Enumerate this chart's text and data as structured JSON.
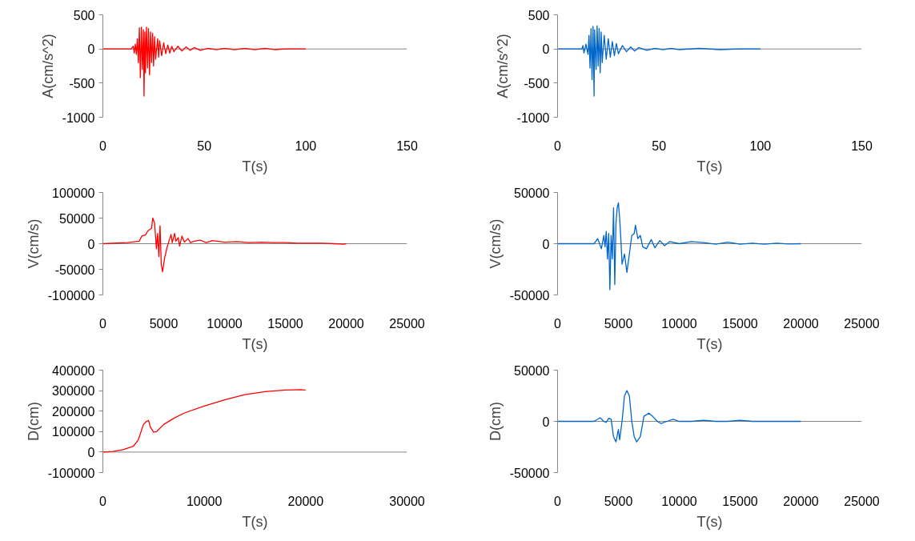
{
  "chart_data": [
    {
      "type": "line",
      "xlabel": "T(s)",
      "ylabel": "A(cm/s^2)",
      "color": "#ff0000",
      "grid": false,
      "ref_lines": [
        {
          "axis": "y",
          "value": 0,
          "color": "#888888"
        }
      ],
      "xlim": [
        0,
        150
      ],
      "ylim": [
        -1000,
        500
      ],
      "xticks": [
        0,
        50,
        100,
        150
      ],
      "yticks": [
        -1000,
        -500,
        0,
        500
      ],
      "x": [
        0,
        14,
        15,
        15.5,
        16,
        16.5,
        17,
        17.5,
        18,
        18.5,
        19,
        19.5,
        20,
        20.3,
        20.7,
        21,
        21.5,
        22,
        22.5,
        23,
        23.5,
        24,
        24.5,
        25,
        25.5,
        26,
        27,
        27.5,
        28,
        29,
        30,
        31,
        32,
        33,
        34,
        35,
        37,
        39,
        41,
        43,
        45,
        48,
        52,
        56,
        60,
        65,
        70,
        75,
        80,
        85,
        90,
        95,
        100
      ],
      "values": [
        0,
        0,
        40,
        -60,
        70,
        -80,
        150,
        -200,
        310,
        -420,
        320,
        -300,
        280,
        -690,
        250,
        -350,
        320,
        -280,
        300,
        -380,
        250,
        -200,
        230,
        -250,
        180,
        -150,
        150,
        -120,
        120,
        -100,
        90,
        -70,
        60,
        -60,
        40,
        -40,
        40,
        -30,
        30,
        -20,
        20,
        -20,
        10,
        -10,
        10,
        -10,
        10,
        -10,
        10,
        -10,
        0,
        0,
        0
      ]
    },
    {
      "type": "line",
      "xlabel": "T(s)",
      "ylabel": "A(cm/s^2)",
      "color": "#0066cc",
      "grid": false,
      "ref_lines": [
        {
          "axis": "y",
          "value": 0,
          "color": "#888888"
        }
      ],
      "xlim": [
        0,
        150
      ],
      "ylim": [
        -1000,
        500
      ],
      "xticks": [
        0,
        50,
        100,
        150
      ],
      "yticks": [
        -1000,
        -500,
        0,
        500
      ],
      "x": [
        0,
        12,
        12.5,
        13,
        14,
        15,
        15.5,
        16,
        16.5,
        17,
        17.5,
        18,
        18.3,
        19,
        19.5,
        20,
        20.5,
        21,
        21.5,
        22,
        23,
        24,
        25,
        26,
        27,
        28,
        29,
        30,
        32,
        34,
        36,
        38,
        40,
        44,
        48,
        52,
        56,
        60,
        70,
        80,
        90,
        100
      ],
      "values": [
        0,
        0,
        50,
        -60,
        70,
        -80,
        200,
        -280,
        300,
        -450,
        330,
        -690,
        280,
        -300,
        340,
        -250,
        300,
        -350,
        250,
        -200,
        200,
        -150,
        150,
        -120,
        110,
        -100,
        80,
        -70,
        50,
        -40,
        30,
        -30,
        20,
        -20,
        10,
        -10,
        10,
        -10,
        10,
        -10,
        0,
        0
      ]
    },
    {
      "type": "line",
      "xlabel": "T(s)",
      "ylabel": "V(cm/s)",
      "color": "#ff0000",
      "grid": false,
      "ref_lines": [
        {
          "axis": "y",
          "value": 0,
          "color": "#888888"
        }
      ],
      "xlim": [
        0,
        25000
      ],
      "ylim": [
        -100000,
        100000
      ],
      "xticks": [
        0,
        5000,
        10000,
        15000,
        20000,
        25000
      ],
      "yticks": [
        -100000,
        -50000,
        0,
        50000,
        100000
      ],
      "x": [
        0,
        2000,
        3000,
        3200,
        3500,
        3700,
        4000,
        4100,
        4250,
        4400,
        4500,
        4600,
        4700,
        4800,
        4900,
        5000,
        5100,
        5300,
        5500,
        5600,
        5700,
        5900,
        6000,
        6200,
        6300,
        6500,
        6700,
        7000,
        7200,
        7500,
        8000,
        8500,
        9000,
        10000,
        11000,
        12000,
        13000,
        14000,
        15000,
        16000,
        17000,
        18000,
        19000,
        19800,
        20000
      ],
      "values": [
        0,
        2000,
        5000,
        15000,
        17000,
        25000,
        30000,
        50000,
        40000,
        -10000,
        20000,
        -25000,
        35000,
        -40000,
        -55000,
        -40000,
        -25000,
        -5000,
        10000,
        18000,
        2000,
        20000,
        5000,
        12000,
        -5000,
        15000,
        3000,
        10000,
        2000,
        5000,
        7000,
        2000,
        6000,
        3000,
        4000,
        2000,
        3000,
        2000,
        2000,
        1000,
        1000,
        1000,
        0,
        -1000,
        0
      ]
    },
    {
      "type": "line",
      "xlabel": "T(s)",
      "ylabel": "V(cm/s)",
      "color": "#0066cc",
      "grid": false,
      "ref_lines": [
        {
          "axis": "y",
          "value": 0,
          "color": "#888888"
        }
      ],
      "xlim": [
        0,
        25000
      ],
      "ylim": [
        -50000,
        50000
      ],
      "xticks": [
        0,
        5000,
        10000,
        15000,
        20000,
        25000
      ],
      "yticks": [
        -50000,
        0,
        50000
      ],
      "x": [
        0,
        3000,
        3300,
        3600,
        3800,
        3900,
        4000,
        4100,
        4200,
        4300,
        4400,
        4500,
        4600,
        4700,
        4800,
        4900,
        5000,
        5100,
        5200,
        5300,
        5500,
        5700,
        5900,
        6100,
        6300,
        6400,
        6600,
        6800,
        7000,
        7300,
        7700,
        8000,
        8400,
        8800,
        9200,
        10000,
        11000,
        12000,
        13000,
        14000,
        15000,
        16000,
        17000,
        18000,
        19000,
        20000
      ],
      "values": [
        0,
        0,
        5000,
        -5000,
        8000,
        -3000,
        12000,
        -15000,
        10000,
        -45000,
        8000,
        -15000,
        35000,
        -40000,
        20000,
        35000,
        40000,
        25000,
        5000,
        -20000,
        -10000,
        -28000,
        -10000,
        8000,
        10000,
        18000,
        5000,
        8000,
        -3000,
        -5000,
        4000,
        -4000,
        3000,
        -2000,
        2000,
        0,
        2000,
        1000,
        -500,
        1500,
        -500,
        500,
        -500,
        500,
        -300,
        0
      ]
    },
    {
      "type": "line",
      "xlabel": "T(s)",
      "ylabel": "D(cm)",
      "color": "#ff0000",
      "grid": false,
      "ref_lines": [
        {
          "axis": "y",
          "value": 0,
          "color": "#888888"
        }
      ],
      "xlim": [
        0,
        30000
      ],
      "ylim": [
        -100000,
        400000
      ],
      "xticks": [
        0,
        10000,
        20000,
        30000
      ],
      "yticks": [
        -100000,
        0,
        100000,
        200000,
        300000,
        400000
      ],
      "x": [
        0,
        1000,
        2000,
        3000,
        3500,
        4000,
        4300,
        4500,
        4700,
        5000,
        5300,
        6000,
        7000,
        8000,
        10000,
        12000,
        14000,
        16000,
        18000,
        19500,
        20000
      ],
      "values": [
        0,
        3000,
        12000,
        28000,
        60000,
        135000,
        150000,
        155000,
        120000,
        98000,
        100000,
        135000,
        165000,
        190000,
        225000,
        255000,
        280000,
        295000,
        303000,
        305000,
        303000
      ]
    },
    {
      "type": "line",
      "xlabel": "T(s)",
      "ylabel": "D(cm)",
      "color": "#0066cc",
      "grid": false,
      "ref_lines": [
        {
          "axis": "y",
          "value": 0,
          "color": "#888888"
        }
      ],
      "xlim": [
        0,
        25000
      ],
      "ylim": [
        -50000,
        50000
      ],
      "xticks": [
        0,
        5000,
        10000,
        15000,
        20000,
        25000
      ],
      "yticks": [
        -50000,
        0,
        50000
      ],
      "x": [
        0,
        3000,
        3500,
        3800,
        4000,
        4200,
        4400,
        4600,
        4800,
        5000,
        5100,
        5300,
        5500,
        5700,
        5900,
        6100,
        6300,
        6500,
        6800,
        7100,
        7500,
        7800,
        8200,
        8500,
        9000,
        9500,
        10000,
        11000,
        12000,
        13000,
        14000,
        15000,
        16000,
        18000,
        20000
      ],
      "values": [
        0,
        0,
        3500,
        0,
        -1000,
        3000,
        2000,
        -15000,
        -20000,
        -8000,
        -18000,
        0,
        25000,
        30000,
        25000,
        0,
        -15000,
        -20000,
        -15000,
        5000,
        8000,
        5000,
        0,
        -2000,
        0,
        2000,
        0,
        0,
        1000,
        0,
        0,
        1000,
        0,
        0,
        0
      ]
    }
  ]
}
